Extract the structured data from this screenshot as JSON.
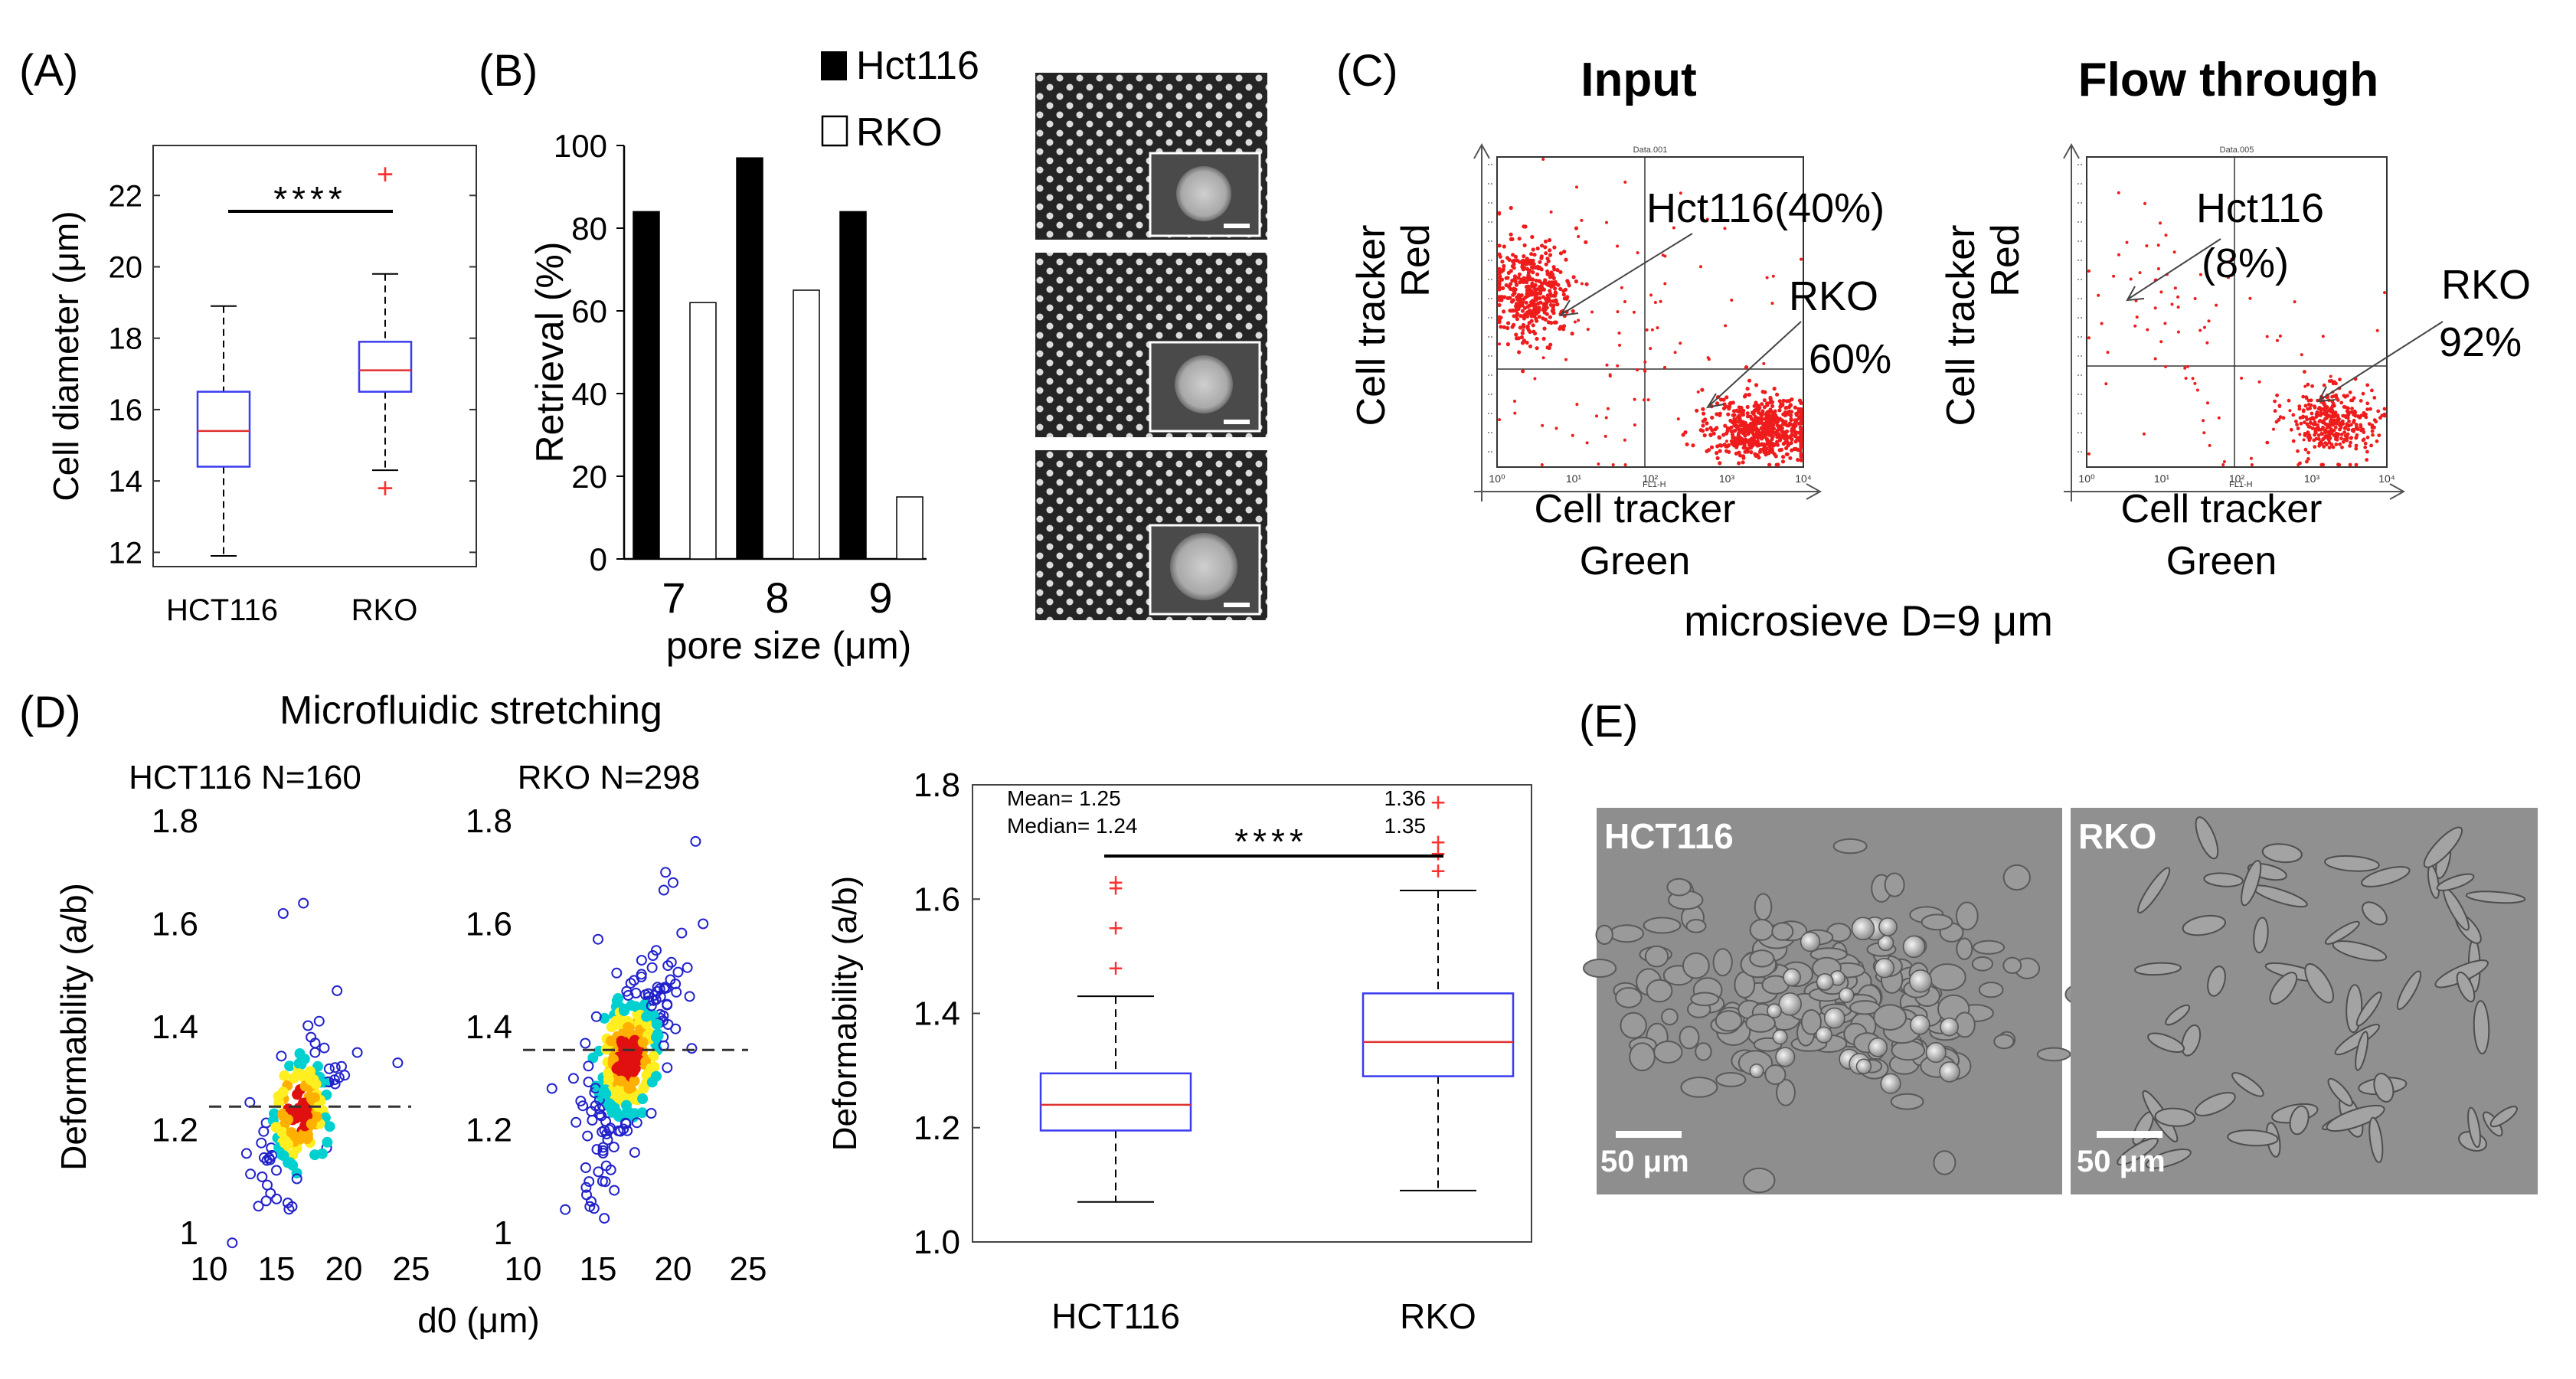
{
  "colors": {
    "box": "#3b3bf0",
    "median": "#e03030",
    "outlier": "#ff3030",
    "scatter_ring": "#2222cc",
    "flow_dot": "#ee1c1c",
    "black": "#000000"
  },
  "panelA": {
    "label": "(A)",
    "significance": "****",
    "chart_data": {
      "type": "box",
      "title": "",
      "categories": [
        "HCT116",
        "RKO"
      ],
      "ylabel": "Cell diameter (μm)",
      "ylim": [
        11.6,
        23.4
      ],
      "yticks": [
        12,
        14,
        16,
        18,
        20,
        22
      ],
      "boxes": [
        {
          "name": "HCT116",
          "whisker_low": 11.9,
          "q1": 14.4,
          "median": 15.4,
          "q3": 16.5,
          "whisker_high": 18.9,
          "outliers": []
        },
        {
          "name": "RKO",
          "whisker_low": 14.3,
          "q1": 16.5,
          "median": 17.1,
          "q3": 17.9,
          "whisker_high": 19.8,
          "outliers": [
            22.6,
            13.8
          ]
        }
      ]
    }
  },
  "panelB": {
    "label": "(B)",
    "chart_data": {
      "type": "bar",
      "categories": [
        "7",
        "8",
        "9"
      ],
      "series": [
        {
          "name": "Hct116",
          "values": [
            84,
            97,
            84
          ],
          "fill": "#000000"
        },
        {
          "name": "RKO",
          "values": [
            62,
            65,
            15
          ],
          "fill": "#ffffff"
        }
      ],
      "xlabel": "pore size (μm)",
      "ylabel": "Retrieval (%)",
      "ylim": [
        0,
        100
      ],
      "yticks": [
        0,
        20,
        40,
        60,
        80,
        100
      ]
    }
  },
  "panelC": {
    "label": "(C)",
    "caption": "microsieve D=9 μm",
    "plots": [
      {
        "title": "Input",
        "data_header": "Data.001",
        "axis_tiny": "FL1-H",
        "ylabel_1": "Cell tracker",
        "ylabel_2": "Red",
        "xlabel_1": "Cell tracker",
        "xlabel_2": "Green",
        "xticks": [
          "10⁰",
          "10¹",
          "10²",
          "10³",
          "10⁴"
        ],
        "annotations": [
          {
            "text": "Hct116(40%)"
          },
          {
            "text": "RKO"
          },
          {
            "text": "60%"
          }
        ]
      },
      {
        "title": "Flow through",
        "data_header": "Data.005",
        "axis_tiny": "FL1-H",
        "ylabel_1": "Cell tracker",
        "ylabel_2": "Red",
        "xlabel_1": "Cell tracker",
        "xlabel_2": "Green",
        "xticks": [
          "10⁰",
          "10¹",
          "10²",
          "10³",
          "10⁴"
        ],
        "annotations": [
          {
            "text": "Hct116"
          },
          {
            "text": "(8%)"
          },
          {
            "text": "RKO"
          },
          {
            "text": "92%"
          }
        ]
      }
    ]
  },
  "panelD": {
    "label": "(D)",
    "title": "Microfluidic stretching",
    "xlabel": "d0 (μm)",
    "scatter": [
      {
        "title": "HCT116 N=160",
        "ylabel": "Deformability (a/b)",
        "xlim": [
          10,
          25
        ],
        "ylim": [
          1.0,
          1.8
        ],
        "xticks": [
          10,
          15,
          20,
          25
        ],
        "yticks": [
          "1",
          "1.2",
          "1.4",
          "1.6",
          "1.8"
        ],
        "mean_line": 1.245,
        "center": [
          16.7,
          1.235
        ]
      },
      {
        "title": "RKO N=298",
        "ylabel": "",
        "xlim": [
          10,
          25
        ],
        "ylim": [
          1.0,
          1.8
        ],
        "xticks": [
          10,
          15,
          20,
          25
        ],
        "yticks": [
          "1",
          "1.2",
          "1.4",
          "1.6",
          "1.8"
        ],
        "mean_line": 1.355,
        "center": [
          17.0,
          1.34
        ]
      }
    ],
    "box": {
      "chart_data": {
        "type": "box",
        "categories": [
          "HCT116",
          "RKO"
        ],
        "ylabel": "Deformability (a/b)",
        "ylim": [
          1.0,
          1.8
        ],
        "yticks": [
          "1.0",
          "1.2",
          "1.4",
          "1.6",
          "1.8"
        ],
        "boxes": [
          {
            "name": "HCT116",
            "whisker_low": 1.07,
            "q1": 1.195,
            "median": 1.24,
            "q3": 1.295,
            "whisker_high": 1.43,
            "outliers": [
              1.48,
              1.55,
              1.62,
              1.63
            ]
          },
          {
            "name": "RKO",
            "whisker_low": 1.09,
            "q1": 1.29,
            "median": 1.35,
            "q3": 1.435,
            "whisker_high": 1.615,
            "outliers": [
              1.65,
              1.68,
              1.7,
              1.77
            ]
          }
        ]
      },
      "stats_left_1": "Mean= 1.25",
      "stats_left_2": "Median= 1.24",
      "stats_right_1": "1.36",
      "stats_right_2": "1.35",
      "significance": "****"
    }
  },
  "panelE": {
    "label": "(E)",
    "images": [
      {
        "label": "HCT116",
        "scale": "50 μm"
      },
      {
        "label": "RKO",
        "scale": "50 μm"
      }
    ]
  }
}
